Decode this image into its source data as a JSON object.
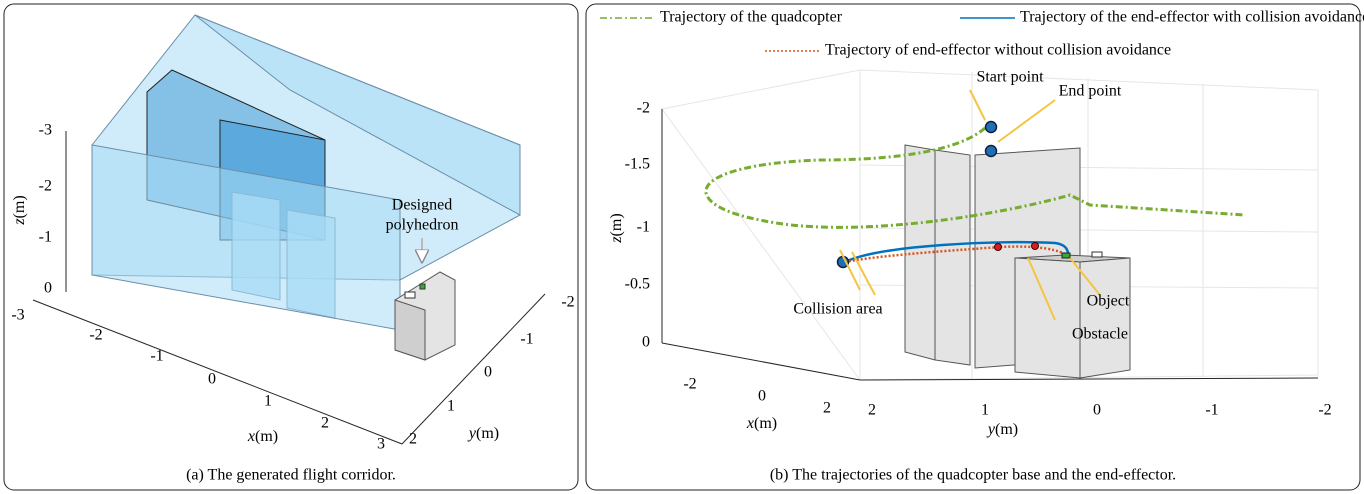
{
  "panel_a": {
    "caption": "(a) The generated flight corridor.",
    "annotation": [
      "Designed",
      "polyhedron"
    ],
    "z_axis": {
      "variable": "z",
      "unit": "(m)",
      "ticks": [
        -3,
        -2,
        -1,
        0
      ]
    },
    "x_axis": {
      "variable": "x",
      "unit": "(m)",
      "ticks": [
        -3,
        -2,
        -1,
        0,
        1,
        2,
        3
      ]
    },
    "y_axis": {
      "variable": "y",
      "unit": "(m)",
      "ticks": [
        -2,
        -1,
        0,
        1,
        2
      ]
    }
  },
  "panel_b": {
    "caption": "(b) The trajectories of the quadcopter base and the end-effector.",
    "legend": [
      {
        "name": "Trajectory of the quadcopter",
        "color": "#77ac30",
        "style": "dashdot"
      },
      {
        "name": "Trajectory of the end-effector with collision avoidance",
        "color": "#0072bd",
        "style": "solid"
      },
      {
        "name": "Trajectory of end-effector without collision avoidance",
        "color": "#d95319",
        "style": "dotted"
      }
    ],
    "annotations": [
      "Start point",
      "End point",
      "Collision  area",
      "Obstacle",
      "Object"
    ],
    "z_axis": {
      "variable": "z",
      "unit": "(m)",
      "ticks": [
        -2,
        -1.5,
        -1,
        -0.5,
        0
      ]
    },
    "x_axis": {
      "variable": "x",
      "unit": "(m)",
      "ticks": [
        -2,
        0,
        2
      ]
    },
    "y_axis": {
      "variable": "y",
      "unit": "(m)",
      "ticks": [
        2,
        1,
        0,
        -1,
        -2
      ]
    }
  }
}
